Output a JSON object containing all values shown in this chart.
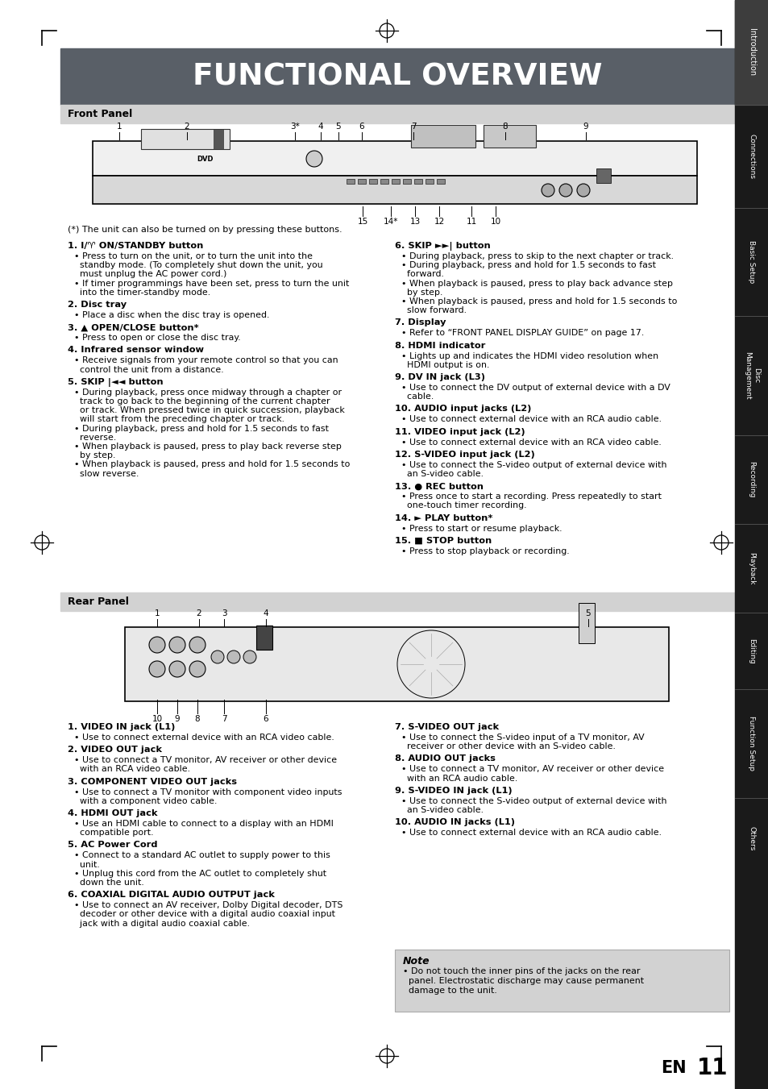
{
  "title": "FUNCTIONAL OVERVIEW",
  "title_bg": "#595f67",
  "title_color": "#ffffff",
  "page_bg": "#ffffff",
  "sidebar_bg": "#1a1a1a",
  "section_header_bg": "#d2d2d2",
  "section_header_color": "#000000",
  "front_panel_title": "Front Panel",
  "rear_panel_title": "Rear Panel",
  "note_bg": "#d2d2d2",
  "asterisk_note": "(*) The unit can also be turned on by pressing these buttons.",
  "left_column_items": [
    {
      "bold": "1. I/♈ ON/STANDBY button",
      "lines": [
        "• Press to turn on the unit, or to turn the unit into the",
        "  standby mode. (To completely shut down the unit, you",
        "  must unplug the AC power cord.)",
        "• If timer programmings have been set, press to turn the unit",
        "  into the timer-standby mode."
      ]
    },
    {
      "bold": "2. Disc tray",
      "lines": [
        "• Place a disc when the disc tray is opened."
      ]
    },
    {
      "bold": "3. ▲ OPEN/CLOSE button*",
      "lines": [
        "• Press to open or close the disc tray."
      ]
    },
    {
      "bold": "4. Infrared sensor window",
      "lines": [
        "• Receive signals from your remote control so that you can",
        "  control the unit from a distance."
      ]
    },
    {
      "bold": "5. SKIP |◄◄ button",
      "lines": [
        "• During playback, press once midway through a chapter or",
        "  track to go back to the beginning of the current chapter",
        "  or track. When pressed twice in quick succession, playback",
        "  will start from the preceding chapter or track.",
        "• During playback, press and hold for 1.5 seconds to fast",
        "  reverse.",
        "• When playback is paused, press to play back reverse step",
        "  by step.",
        "• When playback is paused, press and hold for 1.5 seconds to",
        "  slow reverse."
      ]
    }
  ],
  "right_column_items": [
    {
      "bold": "6. SKIP ►►| button",
      "lines": [
        "• During playback, press to skip to the next chapter or track.",
        "• During playback, press and hold for 1.5 seconds to fast",
        "  forward.",
        "• When playback is paused, press to play back advance step",
        "  by step.",
        "• When playback is paused, press and hold for 1.5 seconds to",
        "  slow forward."
      ]
    },
    {
      "bold": "7. Display",
      "lines": [
        "• Refer to “FRONT PANEL DISPLAY GUIDE” on page 17."
      ]
    },
    {
      "bold": "8. HDMI indicator",
      "lines": [
        "• Lights up and indicates the HDMI video resolution when",
        "  HDMI output is on."
      ]
    },
    {
      "bold": "9. DV IN jack (L3)",
      "lines": [
        "• Use to connect the DV output of external device with a DV",
        "  cable."
      ]
    },
    {
      "bold": "10. AUDIO input jacks (L2)",
      "lines": [
        "• Use to connect external device with an RCA audio cable."
      ]
    },
    {
      "bold": "11. VIDEO input jack (L2)",
      "lines": [
        "• Use to connect external device with an RCA video cable."
      ]
    },
    {
      "bold": "12. S-VIDEO input jack (L2)",
      "lines": [
        "• Use to connect the S-video output of external device with",
        "  an S-video cable."
      ]
    },
    {
      "bold": "13. ● REC button",
      "lines": [
        "• Press once to start a recording. Press repeatedly to start",
        "  one-touch timer recording."
      ]
    },
    {
      "bold": "14. ► PLAY button*",
      "lines": [
        "• Press to start or resume playback."
      ]
    },
    {
      "bold": "15. ■ STOP button",
      "lines": [
        "• Press to stop playback or recording."
      ]
    }
  ],
  "rear_left_items": [
    {
      "bold": "1. VIDEO IN jack (L1)",
      "lines": [
        "• Use to connect external device with an RCA video cable."
      ]
    },
    {
      "bold": "2. VIDEO OUT jack",
      "lines": [
        "• Use to connect a TV monitor, AV receiver or other device",
        "  with an RCA video cable."
      ]
    },
    {
      "bold": "3. COMPONENT VIDEO OUT jacks",
      "lines": [
        "• Use to connect a TV monitor with component video inputs",
        "  with a component video cable."
      ]
    },
    {
      "bold": "4. HDMI OUT jack",
      "lines": [
        "• Use an HDMI cable to connect to a display with an HDMI",
        "  compatible port."
      ]
    },
    {
      "bold": "5. AC Power Cord",
      "lines": [
        "• Connect to a standard AC outlet to supply power to this",
        "  unit.",
        "• Unplug this cord from the AC outlet to completely shut",
        "  down the unit."
      ]
    },
    {
      "bold": "6. COAXIAL DIGITAL AUDIO OUTPUT jack",
      "lines": [
        "• Use to connect an AV receiver, Dolby Digital decoder, DTS",
        "  decoder or other device with a digital audio coaxial input",
        "  jack with a digital audio coaxial cable."
      ]
    }
  ],
  "rear_right_items": [
    {
      "bold": "7. S-VIDEO OUT jack",
      "lines": [
        "• Use to connect the S-video input of a TV monitor, AV",
        "  receiver or other device with an S-video cable."
      ]
    },
    {
      "bold": "8. AUDIO OUT jacks",
      "lines": [
        "• Use to connect a TV monitor, AV receiver or other device",
        "  with an RCA audio cable."
      ]
    },
    {
      "bold": "9. S-VIDEO IN jack (L1)",
      "lines": [
        "• Use to connect the S-video output of external device with",
        "  an S-video cable."
      ]
    },
    {
      "bold": "10. AUDIO IN jacks (L1)",
      "lines": [
        "• Use to connect external device with an RCA audio cable."
      ]
    }
  ],
  "note_text_lines": [
    "• Do not touch the inner pins of the jacks on the rear",
    "  panel. Electrostatic discharge may cause permanent",
    "  damage to the unit."
  ]
}
